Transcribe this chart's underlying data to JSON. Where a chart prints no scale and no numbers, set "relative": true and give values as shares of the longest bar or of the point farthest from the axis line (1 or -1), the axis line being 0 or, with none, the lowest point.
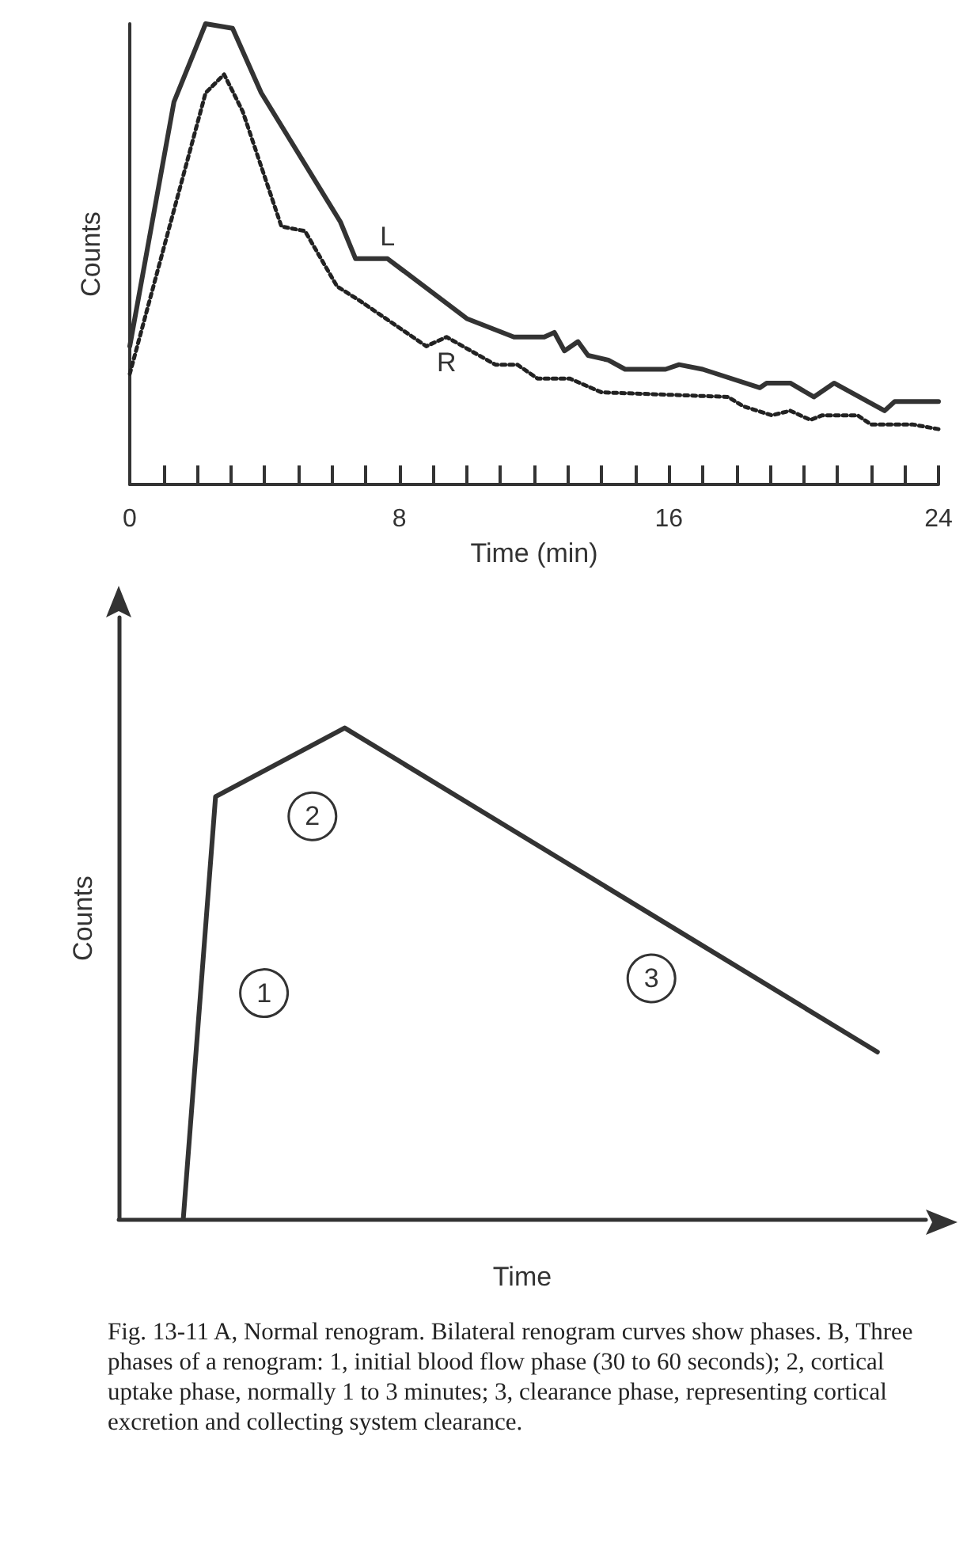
{
  "chart_data": [
    {
      "type": "line",
      "xlabel": "Time (min)",
      "ylabel": "Counts",
      "relative": true,
      "xlim": [
        0,
        24
      ],
      "xticks": [
        0,
        {
          "value": 1,
          "label": null
        },
        {
          "value": 2,
          "label": null
        },
        {
          "value": 3,
          "label": null
        },
        {
          "value": 4,
          "label": null
        },
        {
          "value": 5,
          "label": null
        },
        {
          "value": 6,
          "label": null
        },
        {
          "value": 7,
          "label": null
        },
        8,
        {
          "value": 9,
          "label": null
        },
        {
          "value": 10,
          "label": null
        },
        {
          "value": 11,
          "label": null
        },
        {
          "value": 12,
          "label": null
        },
        {
          "value": 13,
          "label": null
        },
        {
          "value": 14,
          "label": null
        },
        {
          "value": 15,
          "label": null
        },
        16,
        {
          "value": 17,
          "label": null
        },
        {
          "value": 18,
          "label": null
        },
        {
          "value": 19,
          "label": null
        },
        {
          "value": 20,
          "label": null
        },
        {
          "value": 21,
          "label": null
        },
        {
          "value": 22,
          "label": null
        },
        {
          "value": 23,
          "label": null
        },
        24
      ],
      "grid": false,
      "legend": false,
      "marker": "none",
      "series": [
        {
          "name": "L",
          "color": "#333333",
          "line_style": "solid",
          "x": [
            0,
            1.31,
            2.25,
            3.05,
            3.9,
            6.25,
            6.7,
            7.65,
            10.0,
            11.4,
            12.3,
            12.6,
            12.9,
            13.3,
            13.6,
            14.2,
            14.7,
            15.9,
            16.3,
            17.0,
            18.7,
            18.9,
            19.6,
            20.3,
            20.9,
            22.4,
            22.7,
            24
          ],
          "values": [
            0.3,
            0.83,
            1.0,
            0.99,
            0.85,
            0.57,
            0.49,
            0.49,
            0.36,
            0.32,
            0.32,
            0.33,
            0.29,
            0.31,
            0.28,
            0.27,
            0.25,
            0.25,
            0.26,
            0.25,
            0.21,
            0.22,
            0.22,
            0.19,
            0.22,
            0.16,
            0.18,
            0.18
          ]
        },
        {
          "name": "R",
          "color": "#222222",
          "line_style": "dotted",
          "x": [
            0,
            2.25,
            2.8,
            3.35,
            4.5,
            5.2,
            6.15,
            6.8,
            8.8,
            9.4,
            10.85,
            11.5,
            12.1,
            13.05,
            14.0,
            17.75,
            18.2,
            19.05,
            19.6,
            20.2,
            20.55,
            21.6,
            22.0,
            23.25,
            24
          ],
          "values": [
            0.24,
            0.85,
            0.89,
            0.81,
            0.56,
            0.55,
            0.43,
            0.4,
            0.3,
            0.32,
            0.26,
            0.26,
            0.23,
            0.23,
            0.2,
            0.19,
            0.17,
            0.15,
            0.16,
            0.14,
            0.15,
            0.15,
            0.13,
            0.13,
            0.12
          ]
        }
      ]
    },
    {
      "type": "line",
      "xlabel": "Time",
      "ylabel": "Counts",
      "relative": true,
      "legend": false,
      "marker": "none",
      "categories": [
        null,
        null,
        null,
        null,
        null,
        null,
        null,
        null,
        null,
        null,
        null,
        null,
        null,
        null,
        null,
        null,
        null,
        null,
        null,
        null,
        null,
        null,
        null,
        null,
        null,
        null,
        null,
        null,
        null,
        null,
        null,
        null,
        null,
        null,
        null,
        null,
        null,
        null,
        null,
        null,
        null,
        null,
        null,
        null,
        null,
        null,
        null,
        null,
        null,
        null,
        null
      ],
      "series": [
        {
          "color": "#333333",
          "line_style": "solid",
          "values": [
            null,
            null,
            null,
            null,
            0,
            null,
            0.86,
            null,
            null,
            null,
            null,
            null,
            null,
            null,
            1,
            null,
            null,
            null,
            null,
            null,
            null,
            null,
            null,
            null,
            null,
            null,
            null,
            null,
            null,
            null,
            null,
            null,
            null,
            null,
            null,
            null,
            null,
            null,
            null,
            null,
            null,
            null,
            null,
            null,
            null,
            null,
            null,
            0.34,
            null,
            null,
            null
          ]
        }
      ],
      "annotations": [
        "1",
        "2",
        "3",
        "Fig. 13-11   A, Normal renogram. Bilateral renogram curves show phases. B, Three phases of a renogram: 1, initial blood flow phase (30 to 60 seconds); 2, cortical uptake phase, normally 1 to 3 minutes; 3, clearance phase, representing cortical excretion and collecting system clearance."
      ]
    }
  ]
}
